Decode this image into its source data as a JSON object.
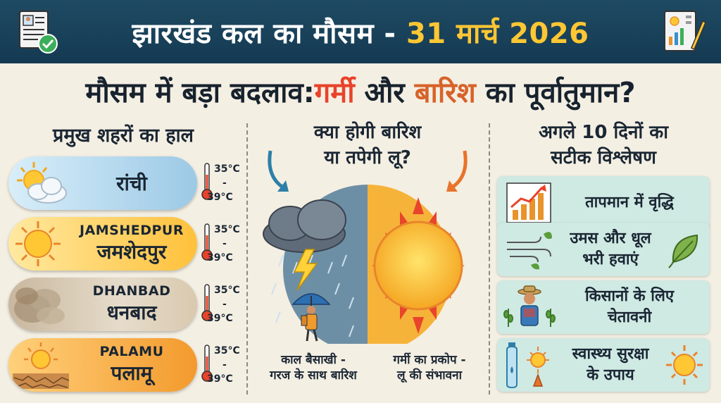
{
  "banner": {
    "title_main": "झारखंड कल का मौसम - ",
    "title_date": "31 मार्च 2026"
  },
  "headline": {
    "part1": "मौसम में बड़ा बदलाव: ",
    "hot": "गर्मी",
    "part2": " और ",
    "rain": "बारिश",
    "part3": " का पूर्वातुमान?"
  },
  "left": {
    "title": "प्रमुख शहरों का हाल",
    "cities": [
      {
        "en": "",
        "hi": "रांची",
        "temp_low": "35°C",
        "dash": "-",
        "temp_high": "39°C"
      },
      {
        "en": "JAMSHEDPUR",
        "hi": "जमशेदपुर",
        "temp_low": "35°C",
        "dash": "-",
        "temp_high": "39°C"
      },
      {
        "en": "DHANBAD",
        "hi": "धनबाद",
        "temp_low": "35°C",
        "dash": "-",
        "temp_high": "39°C"
      },
      {
        "en": "PALAMU",
        "hi": "पलामू",
        "temp_low": "35°C",
        "dash": "-",
        "temp_high": "39°C"
      }
    ]
  },
  "middle": {
    "title_line1": "क्या होगी बारिश",
    "title_line2": "या तपेगी लू?",
    "caption_left_line1": "काल बैसाखी -",
    "caption_left_line2": "गरज के साथ बारिश",
    "caption_right_line1": "गर्मी का प्रकोप -",
    "caption_right_line2": "लू की संभावना"
  },
  "right": {
    "title_line1": "अगले 10 दिनों का",
    "title_line2": "सटीक विश्लेषण",
    "cards": [
      {
        "line1": "तापमान में वृद्धि",
        "line2": ""
      },
      {
        "line1": "उमस और धूल",
        "line2": "भरी हवाएं"
      },
      {
        "line1": "किसानों के लिए",
        "line2": "चेतावनी"
      },
      {
        "line1": "स्वास्थ्य सुरक्षा",
        "line2": "के उपाय"
      }
    ]
  },
  "colors": {
    "banner_bg": "#1f4a63",
    "date_accent": "#ffc733",
    "hot_accent": "#e8432b",
    "rain_accent": "#d7632a",
    "card_bg": "#cfe9e3"
  },
  "icons": [
    "document-check-icon",
    "weather-chart-icon",
    "sun-cloud-icon",
    "sun-icon",
    "dust-icon",
    "cracked-earth-sun-icon",
    "thermometer-icon",
    "storm-cloud-icon",
    "lightning-icon",
    "umbrella-person-icon",
    "big-sun-icon",
    "bar-chart-rising-icon",
    "wind-leaf-icon",
    "farmer-icon",
    "water-bottle-icon"
  ]
}
